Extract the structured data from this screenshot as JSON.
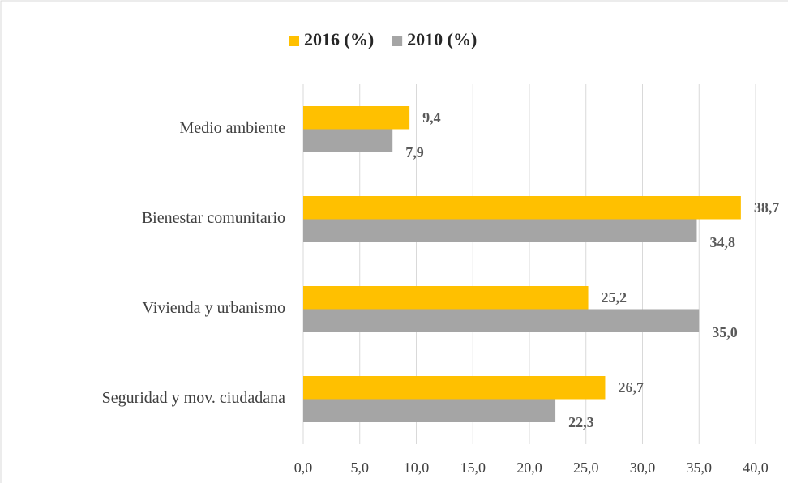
{
  "chart_data": {
    "type": "barh",
    "categories": [
      "Medio ambiente",
      "Bienestar comunitario",
      "Vivienda y urbanismo",
      "Seguridad y mov.  ciudadana"
    ],
    "series": [
      {
        "name": "2016 (%)",
        "color": "#ffc000",
        "values": [
          9.4,
          38.7,
          25.2,
          26.7
        ],
        "value_labels": [
          "9,4",
          "38,7",
          "25,2",
          "26,7"
        ]
      },
      {
        "name": "2010 (%)",
        "color": "#a5a5a5",
        "values": [
          7.9,
          34.8,
          35.0,
          22.3
        ],
        "value_labels": [
          "7,9",
          "34,8",
          "35,0",
          "22,3"
        ]
      }
    ],
    "xlim": [
      0,
      40
    ],
    "xticks": [
      {
        "value": 0,
        "label": "0,0"
      },
      {
        "value": 5,
        "label": "5,0"
      },
      {
        "value": 10,
        "label": "10,0"
      },
      {
        "value": 15,
        "label": "15,0"
      },
      {
        "value": 20,
        "label": "20,0"
      },
      {
        "value": 25,
        "label": "25,0"
      },
      {
        "value": 30,
        "label": "30,0"
      },
      {
        "value": 35,
        "label": "35,0"
      },
      {
        "value": 40,
        "label": "40,0"
      }
    ],
    "grid": true,
    "legend": "top"
  }
}
